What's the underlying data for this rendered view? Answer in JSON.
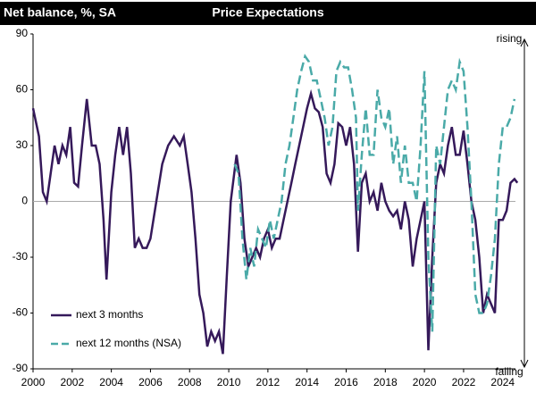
{
  "chart_data": {
    "type": "line",
    "title": "Price Expectations",
    "y_label": "Net balance, %, SA",
    "annotations": {
      "top": "rising",
      "bottom": "falling"
    },
    "xlim": [
      2000,
      2024.65
    ],
    "xticks": [
      2000,
      2002,
      2004,
      2006,
      2008,
      2010,
      2012,
      2014,
      2016,
      2018,
      2020,
      2022,
      2024
    ],
    "ylim": [
      -90,
      90
    ],
    "yticks": [
      -90,
      -60,
      -30,
      0,
      30,
      60,
      90
    ],
    "series": [
      {
        "name": "next 3 months",
        "color": "#35195a",
        "dashed": false,
        "x": [
          2000.0,
          2000.3,
          2000.5,
          2000.7,
          2000.9,
          2001.1,
          2001.3,
          2001.5,
          2001.7,
          2001.9,
          2002.1,
          2002.3,
          2002.5,
          2002.75,
          2003.0,
          2003.2,
          2003.4,
          2003.6,
          2003.75,
          2004.0,
          2004.2,
          2004.4,
          2004.6,
          2004.8,
          2005.0,
          2005.2,
          2005.4,
          2005.6,
          2005.8,
          2006.0,
          2006.3,
          2006.6,
          2006.9,
          2007.2,
          2007.5,
          2007.7,
          2007.9,
          2008.1,
          2008.3,
          2008.5,
          2008.7,
          2008.9,
          2009.1,
          2009.3,
          2009.5,
          2009.7,
          2009.9,
          2010.1,
          2010.4,
          2010.6,
          2010.8,
          2011.0,
          2011.2,
          2011.4,
          2011.6,
          2011.8,
          2012.0,
          2012.2,
          2012.4,
          2012.6,
          2012.8,
          2013.0,
          2013.2,
          2013.4,
          2013.6,
          2013.8,
          2014.0,
          2014.2,
          2014.4,
          2014.6,
          2014.8,
          2015.0,
          2015.2,
          2015.4,
          2015.6,
          2015.8,
          2016.0,
          2016.2,
          2016.4,
          2016.6,
          2016.8,
          2017.0,
          2017.2,
          2017.4,
          2017.6,
          2017.8,
          2018.0,
          2018.2,
          2018.4,
          2018.6,
          2018.8,
          2019.0,
          2019.2,
          2019.4,
          2019.6,
          2019.8,
          2020.0,
          2020.2,
          2020.4,
          2020.6,
          2020.8,
          2021.0,
          2021.2,
          2021.4,
          2021.6,
          2021.8,
          2022.0,
          2022.2,
          2022.4,
          2022.6,
          2022.8,
          2023.0,
          2023.2,
          2023.4,
          2023.6,
          2023.8,
          2024.0,
          2024.2,
          2024.4,
          2024.6,
          2024.75
        ],
        "values": [
          50,
          35,
          5,
          0,
          15,
          30,
          20,
          30,
          25,
          40,
          10,
          8,
          30,
          55,
          30,
          30,
          20,
          -10,
          -42,
          5,
          25,
          40,
          25,
          40,
          15,
          -25,
          -20,
          -25,
          -25,
          -20,
          0,
          20,
          30,
          35,
          30,
          35,
          20,
          5,
          -20,
          -50,
          -60,
          -78,
          -70,
          -75,
          -70,
          -82,
          -40,
          0,
          25,
          10,
          -20,
          -35,
          -30,
          -25,
          -30,
          -20,
          -15,
          -25,
          -20,
          -20,
          -10,
          0,
          10,
          20,
          30,
          40,
          50,
          58,
          50,
          48,
          40,
          15,
          10,
          20,
          42,
          40,
          30,
          40,
          20,
          -27,
          10,
          15,
          0,
          5,
          -5,
          10,
          0,
          -5,
          -8,
          -5,
          -15,
          0,
          -10,
          -35,
          -20,
          -10,
          0,
          -80,
          -30,
          10,
          20,
          15,
          30,
          40,
          25,
          25,
          38,
          20,
          0,
          -10,
          -30,
          -60,
          -50,
          -55,
          -60,
          -10,
          -10,
          -5,
          10,
          12,
          10
        ]
      },
      {
        "name": "next 12 months (NSA)",
        "color": "#4aaaa8",
        "dashed": true,
        "x": [
          2010.3,
          2010.5,
          2010.7,
          2010.9,
          2011.1,
          2011.3,
          2011.5,
          2011.7,
          2011.9,
          2012.1,
          2012.3,
          2012.5,
          2012.7,
          2012.9,
          2013.1,
          2013.3,
          2013.5,
          2013.7,
          2013.9,
          2014.1,
          2014.3,
          2014.5,
          2014.7,
          2014.9,
          2015.1,
          2015.3,
          2015.5,
          2015.7,
          2015.9,
          2016.1,
          2016.3,
          2016.5,
          2016.6,
          2016.8,
          2017.0,
          2017.2,
          2017.4,
          2017.6,
          2017.8,
          2018.0,
          2018.2,
          2018.4,
          2018.6,
          2018.8,
          2019.0,
          2019.2,
          2019.4,
          2019.6,
          2019.8,
          2020.0,
          2020.2,
          2020.4,
          2020.6,
          2020.8,
          2021.0,
          2021.2,
          2021.4,
          2021.6,
          2021.8,
          2022.0,
          2022.2,
          2022.4,
          2022.6,
          2022.8,
          2023.0,
          2023.2,
          2023.4,
          2023.6,
          2023.8,
          2024.0,
          2024.2,
          2024.4,
          2024.6
        ],
        "values": [
          20,
          15,
          -20,
          -42,
          -25,
          -35,
          -15,
          -20,
          -25,
          -10,
          -20,
          -10,
          0,
          20,
          30,
          45,
          60,
          70,
          78,
          75,
          65,
          65,
          55,
          45,
          30,
          40,
          70,
          75,
          72,
          72,
          60,
          45,
          -5,
          25,
          50,
          25,
          25,
          60,
          45,
          40,
          50,
          20,
          35,
          10,
          30,
          10,
          10,
          0,
          30,
          70,
          -30,
          -70,
          30,
          20,
          40,
          60,
          65,
          60,
          75,
          70,
          40,
          0,
          -50,
          -60,
          -60,
          -55,
          -40,
          -20,
          20,
          40,
          40,
          45,
          55
        ]
      }
    ]
  }
}
